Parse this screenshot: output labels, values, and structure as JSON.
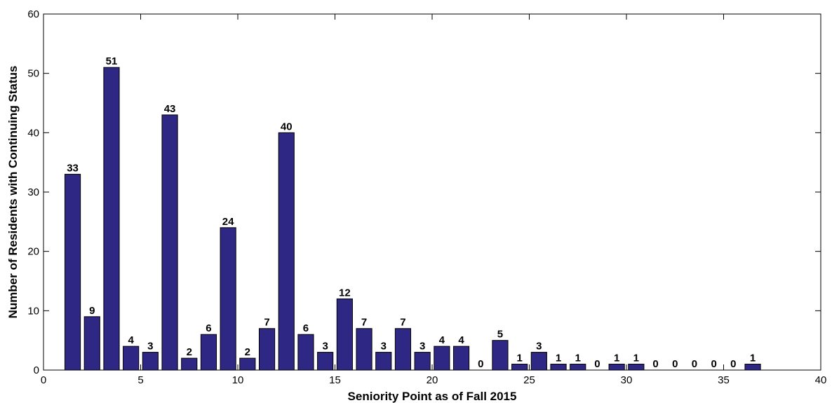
{
  "chart_data": {
    "type": "bar",
    "title": "",
    "xlabel": "Seniority Point as of Fall 2015",
    "ylabel": "Number of Residents with Continuing Status",
    "xlim": [
      0,
      40
    ],
    "ylim": [
      0,
      60
    ],
    "xticks": [
      0,
      5,
      10,
      15,
      20,
      25,
      30,
      35,
      40
    ],
    "yticks": [
      0,
      10,
      20,
      30,
      40,
      50,
      60
    ],
    "grid": false,
    "legend": "none",
    "bar_color": "#2e2783",
    "bar_edge_color": "#000000",
    "x": [
      1.5,
      2.5,
      3.5,
      4.5,
      5.5,
      6.5,
      7.5,
      8.5,
      9.5,
      10.5,
      11.5,
      12.5,
      13.5,
      14.5,
      15.5,
      16.5,
      17.5,
      18.5,
      19.5,
      20.5,
      21.5,
      22.5,
      23.5,
      24.5,
      25.5,
      26.5,
      27.5,
      28.5,
      29.5,
      30.5,
      31.5,
      32.5,
      33.5,
      34.5,
      35.5,
      36.5
    ],
    "values": [
      33,
      9,
      51,
      4,
      3,
      43,
      2,
      6,
      24,
      2,
      7,
      40,
      6,
      3,
      12,
      7,
      3,
      7,
      3,
      4,
      4,
      0,
      5,
      1,
      3,
      1,
      1,
      0,
      1,
      1,
      0,
      0,
      0,
      0,
      0,
      1
    ],
    "labels": [
      "33",
      "9",
      "51",
      "4",
      "3",
      "43",
      "2",
      "6",
      "24",
      "2",
      "7",
      "40",
      "6",
      "3",
      "12",
      "7",
      "3",
      "7",
      "3",
      "4",
      "4",
      "0",
      "5",
      "1",
      "3",
      "1",
      "1",
      "0",
      "1",
      "1",
      "0",
      "0",
      "0",
      "0",
      "0",
      "1"
    ]
  }
}
